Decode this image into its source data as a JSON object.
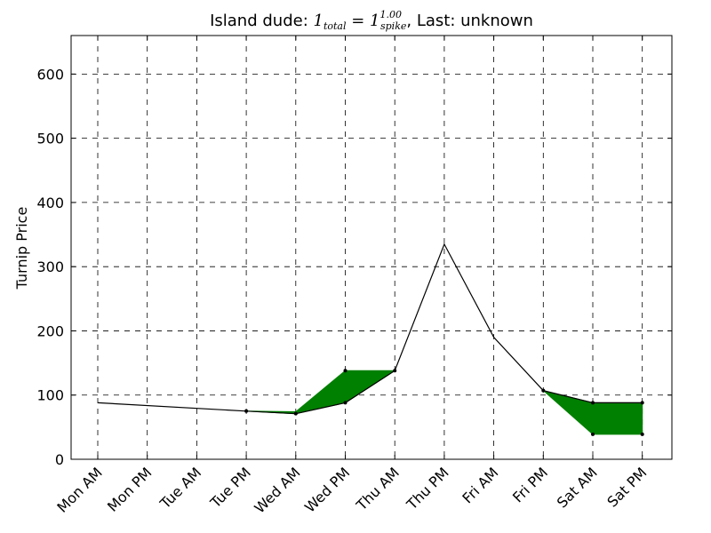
{
  "chart_data": {
    "type": "line",
    "title": {
      "prefix": "Island dude: ",
      "math_base": "1",
      "math_sub1": "total",
      "math_eq": " = 1",
      "math_sup": "1.00",
      "math_sub2": "spike",
      "suffix": ", Last: unknown"
    },
    "xlabel": "",
    "ylabel": "Turnip Price",
    "categories": [
      "Mon AM",
      "Mon PM",
      "Tue AM",
      "Tue PM",
      "Wed AM",
      "Wed PM",
      "Thu AM",
      "Thu PM",
      "Fri AM",
      "Fri PM",
      "Sat AM",
      "Sat PM"
    ],
    "ylim": [
      0,
      660
    ],
    "yticks": [
      0,
      100,
      200,
      300,
      400,
      500,
      600
    ],
    "grid": true,
    "series": [
      {
        "values": [
          88,
          null,
          null,
          75,
          71,
          88,
          138,
          335,
          190,
          107,
          88,
          88
        ]
      }
    ],
    "range_band": {
      "color": "#008000",
      "lower": [
        null,
        null,
        null,
        75,
        71,
        88,
        138,
        null,
        null,
        107,
        39,
        39
      ],
      "upper": [
        null,
        null,
        null,
        75,
        74,
        138,
        138,
        null,
        null,
        107,
        88,
        88
      ]
    },
    "markers": [
      {
        "index": 3,
        "value": 75
      },
      {
        "index": 4,
        "value": 71
      },
      {
        "index": 5,
        "value": 88
      },
      {
        "index": 5,
        "value": 138
      },
      {
        "index": 6,
        "value": 138
      },
      {
        "index": 9,
        "value": 107
      },
      {
        "index": 10,
        "value": 88
      },
      {
        "index": 10,
        "value": 39
      },
      {
        "index": 11,
        "value": 88
      },
      {
        "index": 11,
        "value": 39
      }
    ],
    "line_color": "#000000"
  }
}
